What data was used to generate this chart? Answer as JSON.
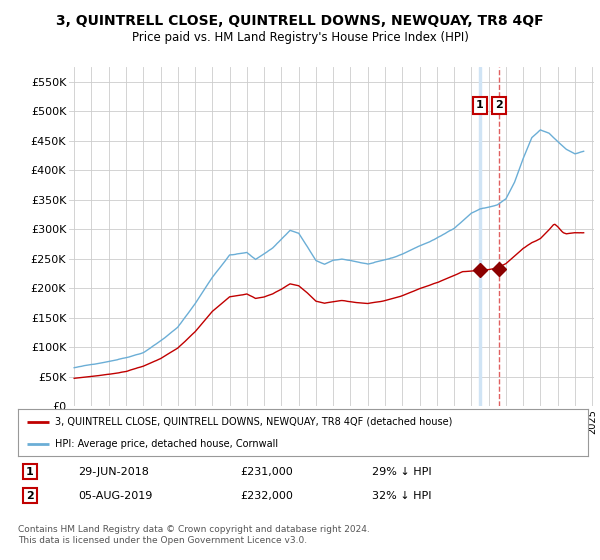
{
  "title": "3, QUINTRELL CLOSE, QUINTRELL DOWNS, NEWQUAY, TR8 4QF",
  "subtitle": "Price paid vs. HM Land Registry's House Price Index (HPI)",
  "title_fontsize": 10,
  "subtitle_fontsize": 8.5,
  "background_color": "#ffffff",
  "grid_color": "#cccccc",
  "ylim": [
    0,
    575000
  ],
  "yticks": [
    0,
    50000,
    100000,
    150000,
    200000,
    250000,
    300000,
    350000,
    400000,
    450000,
    500000,
    550000
  ],
  "hpi_color": "#6baed6",
  "price_color": "#c00000",
  "marker_color": "#8b0000",
  "vband_color": "#d0e4f5",
  "vline_color": "#e06060",
  "legend_label_price": "3, QUINTRELL CLOSE, QUINTRELL DOWNS, NEWQUAY, TR8 4QF (detached house)",
  "legend_label_hpi": "HPI: Average price, detached house, Cornwall",
  "annotation1_date": "29-JUN-2018",
  "annotation1_price": "£231,000",
  "annotation1_hpi": "29% ↓ HPI",
  "annotation2_date": "05-AUG-2019",
  "annotation2_price": "£232,000",
  "annotation2_hpi": "32% ↓ HPI",
  "footnote": "Contains HM Land Registry data © Crown copyright and database right 2024.\nThis data is licensed under the Open Government Licence v3.0.",
  "sale1_year": 2018.5,
  "sale1_value": 231000,
  "sale2_year": 2019.6,
  "sale2_value": 232000
}
